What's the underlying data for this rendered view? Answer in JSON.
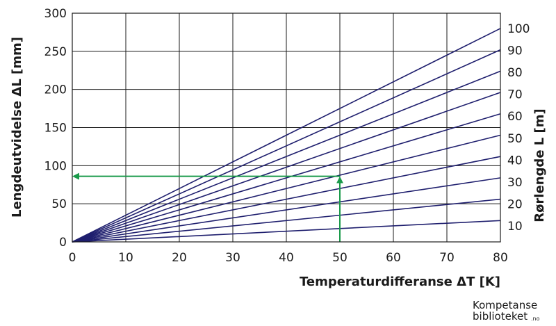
{
  "chart_data": {
    "type": "line",
    "xlabel": "Temperaturdifferanse ΔT [K]",
    "ylabel": "Lengdeutvidelse ΔL [mm]",
    "y2label": "Rørlengde L [m]",
    "xlim": [
      0,
      80
    ],
    "ylim": [
      0,
      300
    ],
    "x_ticks": [
      "0",
      "10",
      "20",
      "30",
      "40",
      "50",
      "60",
      "70",
      "80"
    ],
    "y_ticks": [
      "0",
      "50",
      "100",
      "150",
      "200",
      "250",
      "300"
    ],
    "series": [
      {
        "name": "10",
        "x": [
          0,
          80
        ],
        "y": [
          0,
          28
        ]
      },
      {
        "name": "20",
        "x": [
          0,
          80
        ],
        "y": [
          0,
          56
        ]
      },
      {
        "name": "30",
        "x": [
          0,
          80
        ],
        "y": [
          0,
          84
        ]
      },
      {
        "name": "40",
        "x": [
          0,
          80
        ],
        "y": [
          0,
          112
        ]
      },
      {
        "name": "50",
        "x": [
          0,
          80
        ],
        "y": [
          0,
          140
        ]
      },
      {
        "name": "60",
        "x": [
          0,
          80
        ],
        "y": [
          0,
          168
        ]
      },
      {
        "name": "70",
        "x": [
          0,
          80
        ],
        "y": [
          0,
          196
        ]
      },
      {
        "name": "80",
        "x": [
          0,
          80
        ],
        "y": [
          0,
          224
        ]
      },
      {
        "name": "90",
        "x": [
          0,
          80
        ],
        "y": [
          0,
          252
        ]
      },
      {
        "name": "100",
        "x": [
          0,
          80
        ],
        "y": [
          0,
          280
        ]
      }
    ],
    "annotation": {
      "x": 50,
      "y": 86,
      "color": "#1a9a4a"
    },
    "grid": true,
    "line_color": "#1f1f6e"
  },
  "logo": {
    "line1": "Kompetanse",
    "line2": "biblioteket",
    "tld": ".no"
  }
}
